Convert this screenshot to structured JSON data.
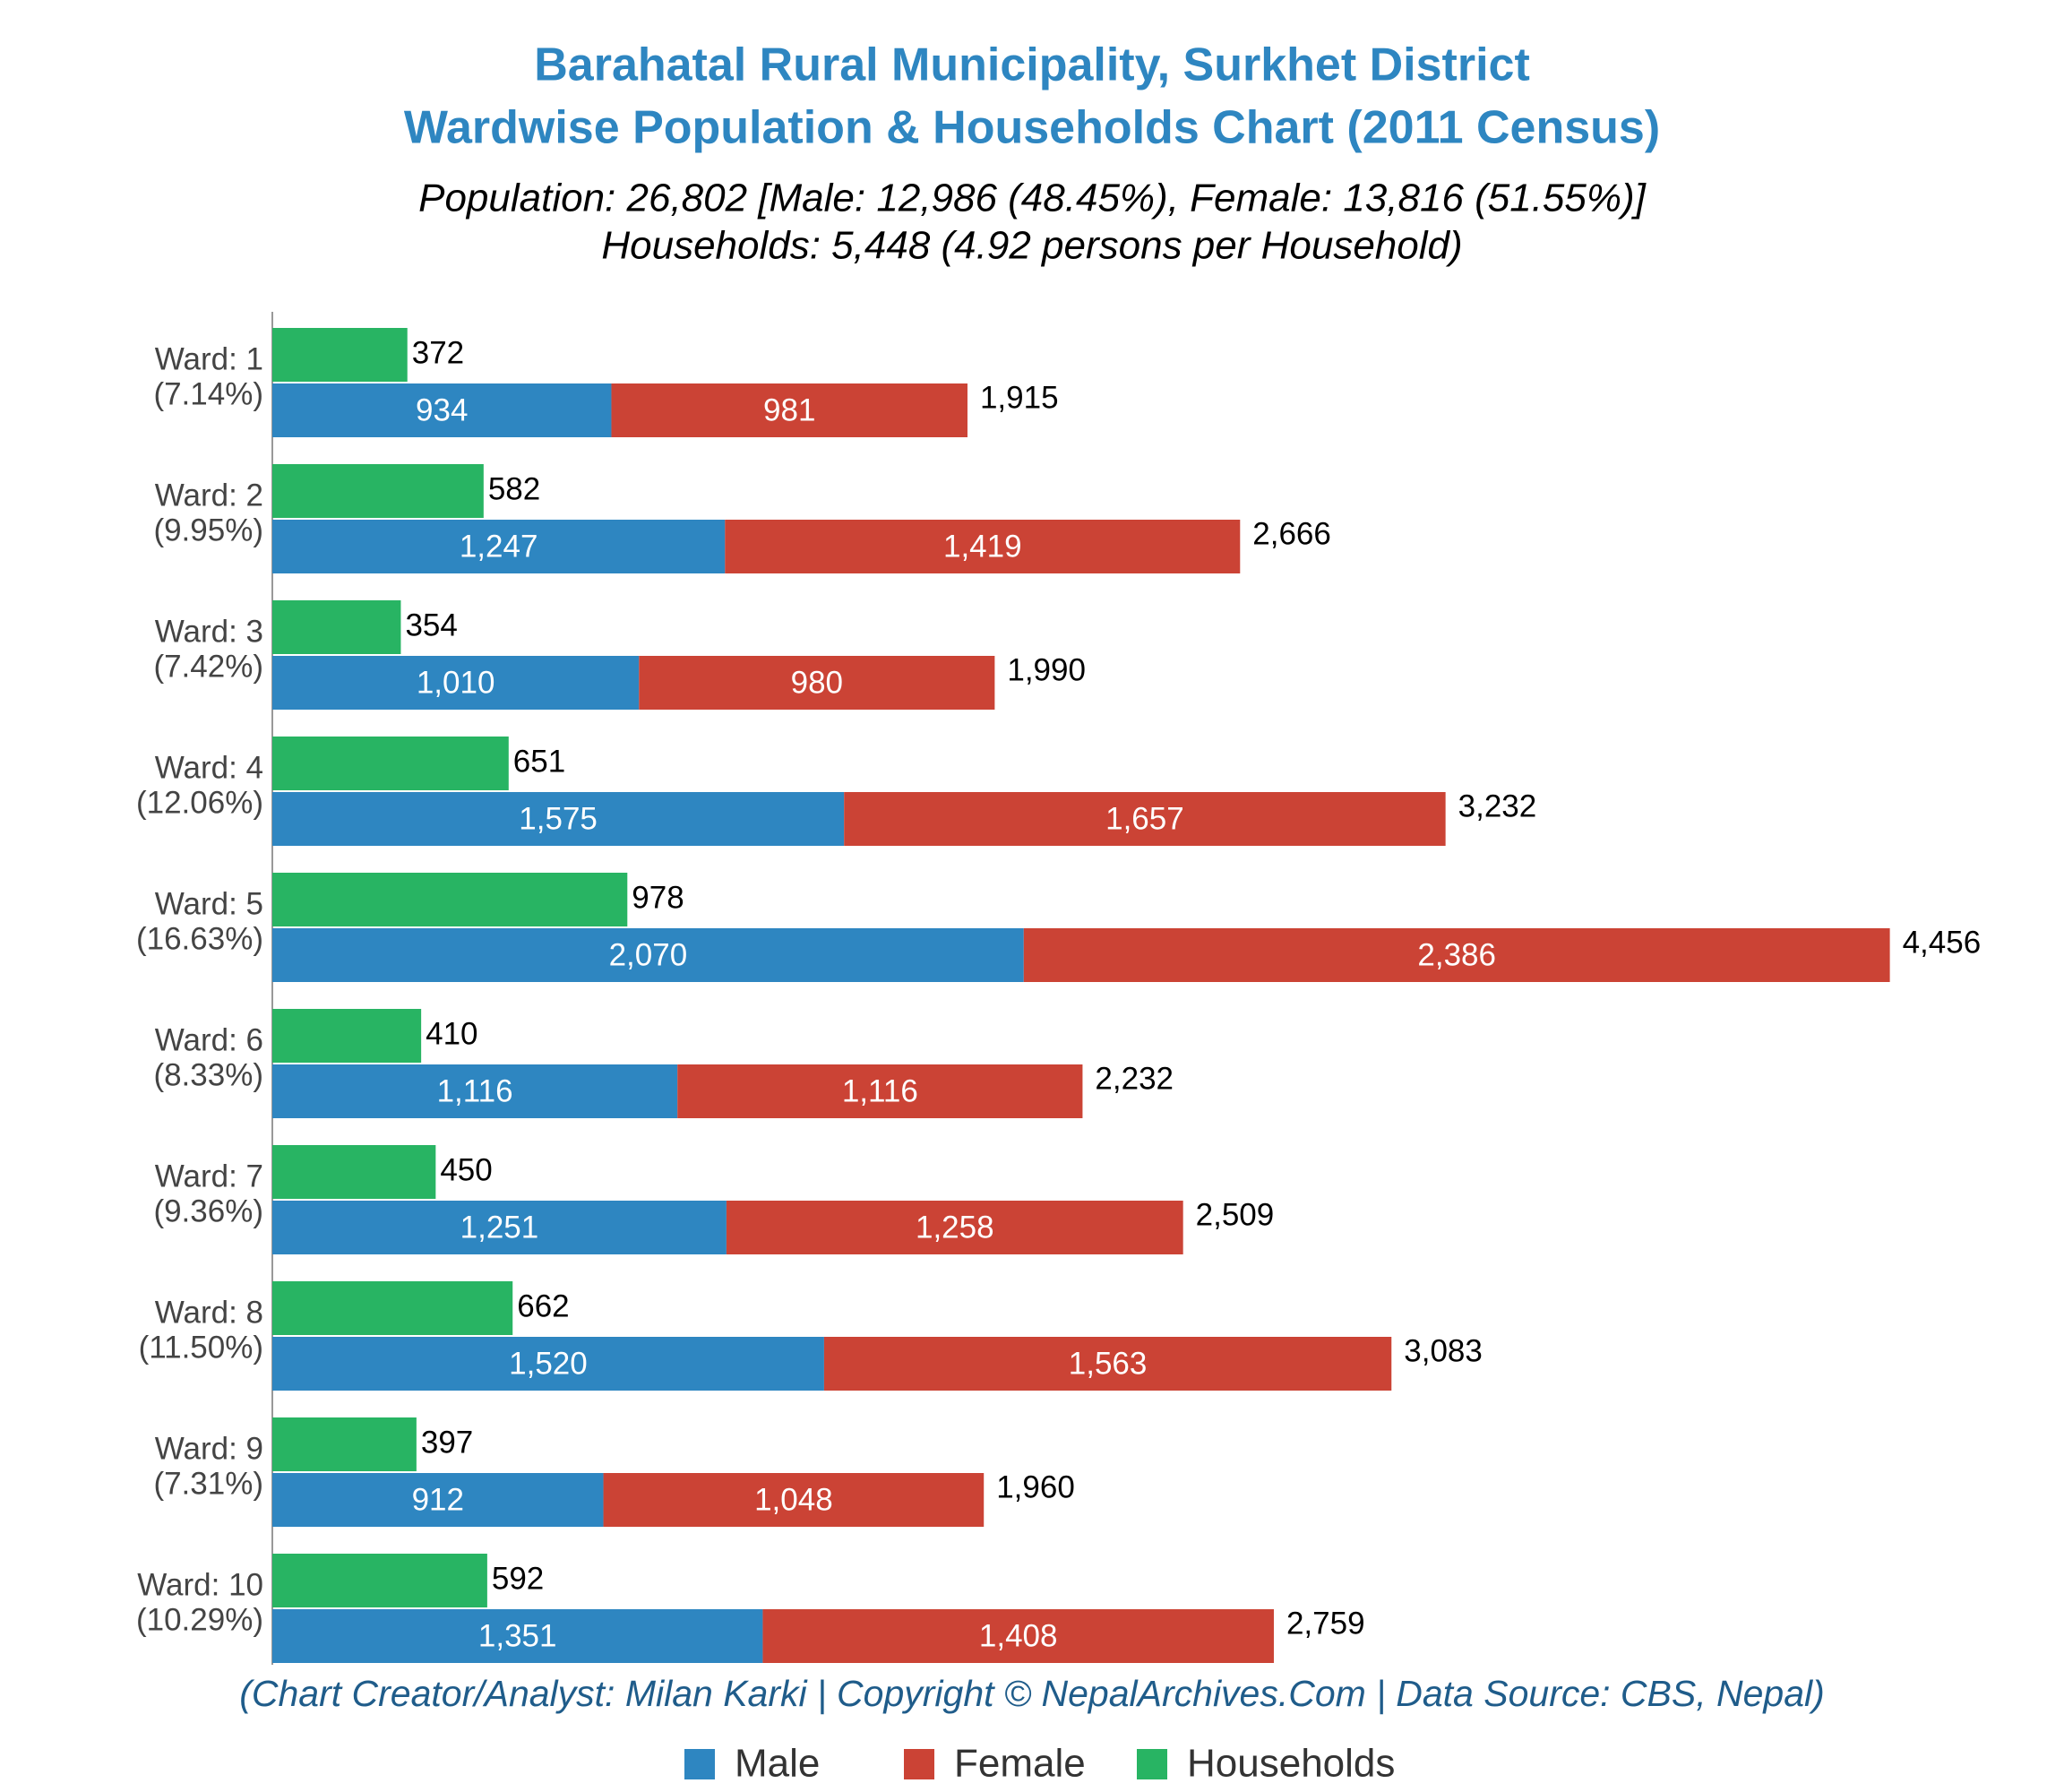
{
  "chart_data": {
    "type": "bar",
    "title": [
      "Barahatal Rural Municipality, Surkhet District",
      "Wardwise Population & Households Chart (2011 Census)"
    ],
    "subtitle": [
      "Population: 26,802 [Male: 12,986 (48.45%), Female: 13,816 (51.55%)]",
      "Households: 5,448 (4.92 persons per Household)"
    ],
    "footer": "(Chart Creator/Analyst: Milan Karki | Copyright © NepalArchives.Com | Data Source: CBS, Nepal)",
    "categories": [
      "Ward: 1",
      "Ward: 2",
      "Ward: 3",
      "Ward: 4",
      "Ward: 5",
      "Ward: 6",
      "Ward: 7",
      "Ward: 8",
      "Ward: 9",
      "Ward: 10"
    ],
    "category_shares": [
      "(7.14%)",
      "(9.95%)",
      "(7.42%)",
      "(12.06%)",
      "(16.63%)",
      "(8.33%)",
      "(9.36%)",
      "(11.50%)",
      "(7.31%)",
      "(10.29%)"
    ],
    "series": [
      {
        "name": "Male",
        "color": "#2e86c1",
        "values": [
          934,
          1247,
          1010,
          1575,
          2070,
          1116,
          1251,
          1520,
          912,
          1351
        ],
        "value_labels": [
          "934",
          "1,247",
          "1,010",
          "1,575",
          "2,070",
          "1,116",
          "1,251",
          "1,520",
          "912",
          "1,351"
        ]
      },
      {
        "name": "Female",
        "color": "#cb4335",
        "values": [
          981,
          1419,
          980,
          1657,
          2386,
          1116,
          1258,
          1563,
          1048,
          1408
        ],
        "value_labels": [
          "981",
          "1,419",
          "980",
          "1,657",
          "2,386",
          "1,116",
          "1,258",
          "1,563",
          "1,048",
          "1,408"
        ]
      },
      {
        "name": "Households",
        "color": "#28b463",
        "values": [
          372,
          582,
          354,
          651,
          978,
          410,
          450,
          662,
          397,
          592
        ],
        "value_labels": [
          "372",
          "582",
          "354",
          "651",
          "978",
          "410",
          "450",
          "662",
          "397",
          "592"
        ]
      }
    ],
    "totals": {
      "values": [
        1915,
        2666,
        1990,
        3232,
        4456,
        2232,
        2509,
        3083,
        1960,
        2759
      ],
      "value_labels": [
        "1,915",
        "2,666",
        "1,990",
        "3,232",
        "4,456",
        "2,232",
        "2,509",
        "3,083",
        "1,960",
        "2,759"
      ]
    },
    "xlim": [
      0,
      4800
    ]
  }
}
